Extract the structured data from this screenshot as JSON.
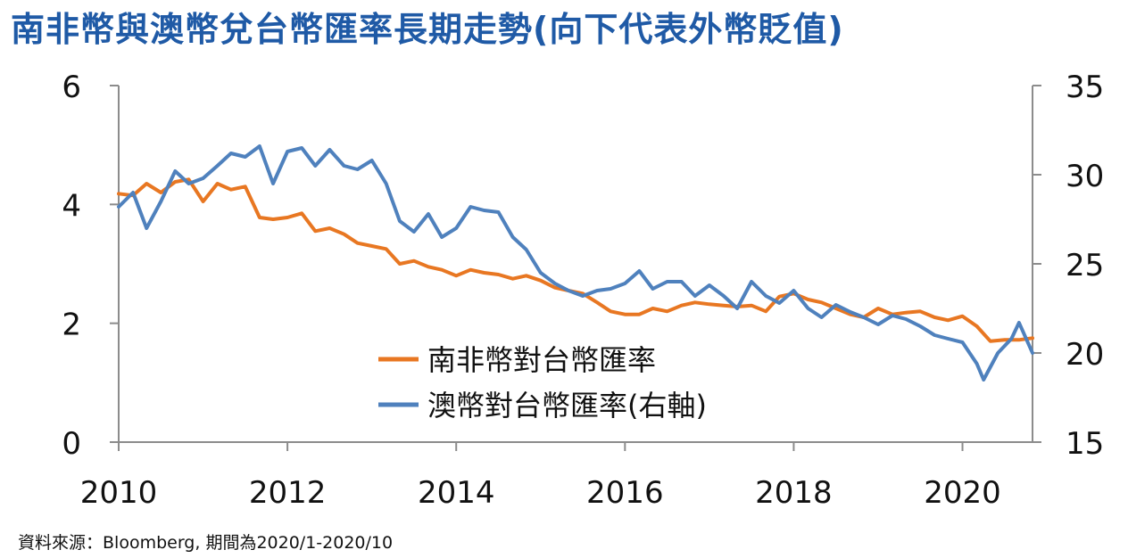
{
  "title": "南非幣與澳幣兌台幣匯率長期走勢(向下代表外幣貶值)",
  "source": "資料來源：Bloomberg, 期間為2020/1-2020/10",
  "chart_data": {
    "type": "line",
    "x_ticks": [
      "2010",
      "2012",
      "2014",
      "2016",
      "2018",
      "2020"
    ],
    "y_left": {
      "range": [
        0,
        6
      ],
      "ticks": [
        "0",
        "2",
        "4",
        "6"
      ]
    },
    "y_right": {
      "range": [
        15,
        35
      ],
      "ticks": [
        "15",
        "20",
        "25",
        "30",
        "35"
      ]
    },
    "legend": "bottom-center",
    "series": [
      {
        "name": "南非幣對台幣匯率",
        "axis": "left",
        "color": "#e87722",
        "x": [
          2010.0,
          2010.17,
          2010.33,
          2010.5,
          2010.67,
          2010.83,
          2011.0,
          2011.17,
          2011.33,
          2011.5,
          2011.67,
          2011.83,
          2012.0,
          2012.17,
          2012.33,
          2012.5,
          2012.67,
          2012.83,
          2013.0,
          2013.17,
          2013.33,
          2013.5,
          2013.67,
          2013.83,
          2014.0,
          2014.17,
          2014.33,
          2014.5,
          2014.67,
          2014.83,
          2015.0,
          2015.17,
          2015.33,
          2015.5,
          2015.67,
          2015.83,
          2016.0,
          2016.17,
          2016.33,
          2016.5,
          2016.67,
          2016.83,
          2017.0,
          2017.17,
          2017.33,
          2017.5,
          2017.67,
          2017.83,
          2018.0,
          2018.17,
          2018.33,
          2018.5,
          2018.67,
          2018.83,
          2019.0,
          2019.17,
          2019.33,
          2019.5,
          2019.67,
          2019.83,
          2020.0,
          2020.17,
          2020.33,
          2020.5,
          2020.67,
          2020.83
        ],
        "values": [
          4.18,
          4.15,
          4.35,
          4.2,
          4.38,
          4.42,
          4.05,
          4.35,
          4.25,
          4.3,
          3.78,
          3.75,
          3.78,
          3.85,
          3.55,
          3.6,
          3.5,
          3.35,
          3.3,
          3.25,
          3.0,
          3.05,
          2.95,
          2.9,
          2.8,
          2.9,
          2.85,
          2.82,
          2.75,
          2.8,
          2.72,
          2.6,
          2.55,
          2.5,
          2.35,
          2.2,
          2.15,
          2.15,
          2.25,
          2.2,
          2.3,
          2.35,
          2.32,
          2.3,
          2.28,
          2.3,
          2.2,
          2.45,
          2.5,
          2.4,
          2.35,
          2.25,
          2.15,
          2.1,
          2.25,
          2.15,
          2.18,
          2.2,
          2.1,
          2.05,
          2.12,
          1.95,
          1.7,
          1.72,
          1.72,
          1.75
        ]
      },
      {
        "name": "澳幣對台幣匯率(右軸)",
        "axis": "right",
        "color": "#4f81bd",
        "x": [
          2010.0,
          2010.17,
          2010.33,
          2010.5,
          2010.67,
          2010.83,
          2011.0,
          2011.17,
          2011.33,
          2011.5,
          2011.67,
          2011.83,
          2012.0,
          2012.17,
          2012.33,
          2012.5,
          2012.67,
          2012.83,
          2013.0,
          2013.17,
          2013.33,
          2013.5,
          2013.67,
          2013.83,
          2014.0,
          2014.17,
          2014.33,
          2014.5,
          2014.67,
          2014.83,
          2015.0,
          2015.17,
          2015.33,
          2015.5,
          2015.67,
          2015.83,
          2016.0,
          2016.17,
          2016.33,
          2016.5,
          2016.67,
          2016.83,
          2017.0,
          2017.17,
          2017.33,
          2017.5,
          2017.67,
          2017.83,
          2018.0,
          2018.17,
          2018.33,
          2018.5,
          2018.67,
          2018.83,
          2019.0,
          2019.17,
          2019.33,
          2019.5,
          2019.67,
          2019.83,
          2020.0,
          2020.17,
          2020.25,
          2020.42,
          2020.58,
          2020.67,
          2020.83
        ],
        "values": [
          28.2,
          29.0,
          27.0,
          28.5,
          30.2,
          29.5,
          29.8,
          30.5,
          31.2,
          31.0,
          31.6,
          29.5,
          31.3,
          31.5,
          30.5,
          31.4,
          30.5,
          30.3,
          30.8,
          29.5,
          27.4,
          26.8,
          27.8,
          26.5,
          27.0,
          28.2,
          28.0,
          27.9,
          26.5,
          25.8,
          24.5,
          23.9,
          23.5,
          23.2,
          23.5,
          23.6,
          23.9,
          24.6,
          23.6,
          24.0,
          24.0,
          23.2,
          23.8,
          23.2,
          22.5,
          24.0,
          23.2,
          22.8,
          23.5,
          22.5,
          22.0,
          22.7,
          22.3,
          22.0,
          21.6,
          22.1,
          21.9,
          21.5,
          21.0,
          20.8,
          20.6,
          19.4,
          18.5,
          20.0,
          20.8,
          21.7,
          20.0
        ]
      }
    ]
  }
}
